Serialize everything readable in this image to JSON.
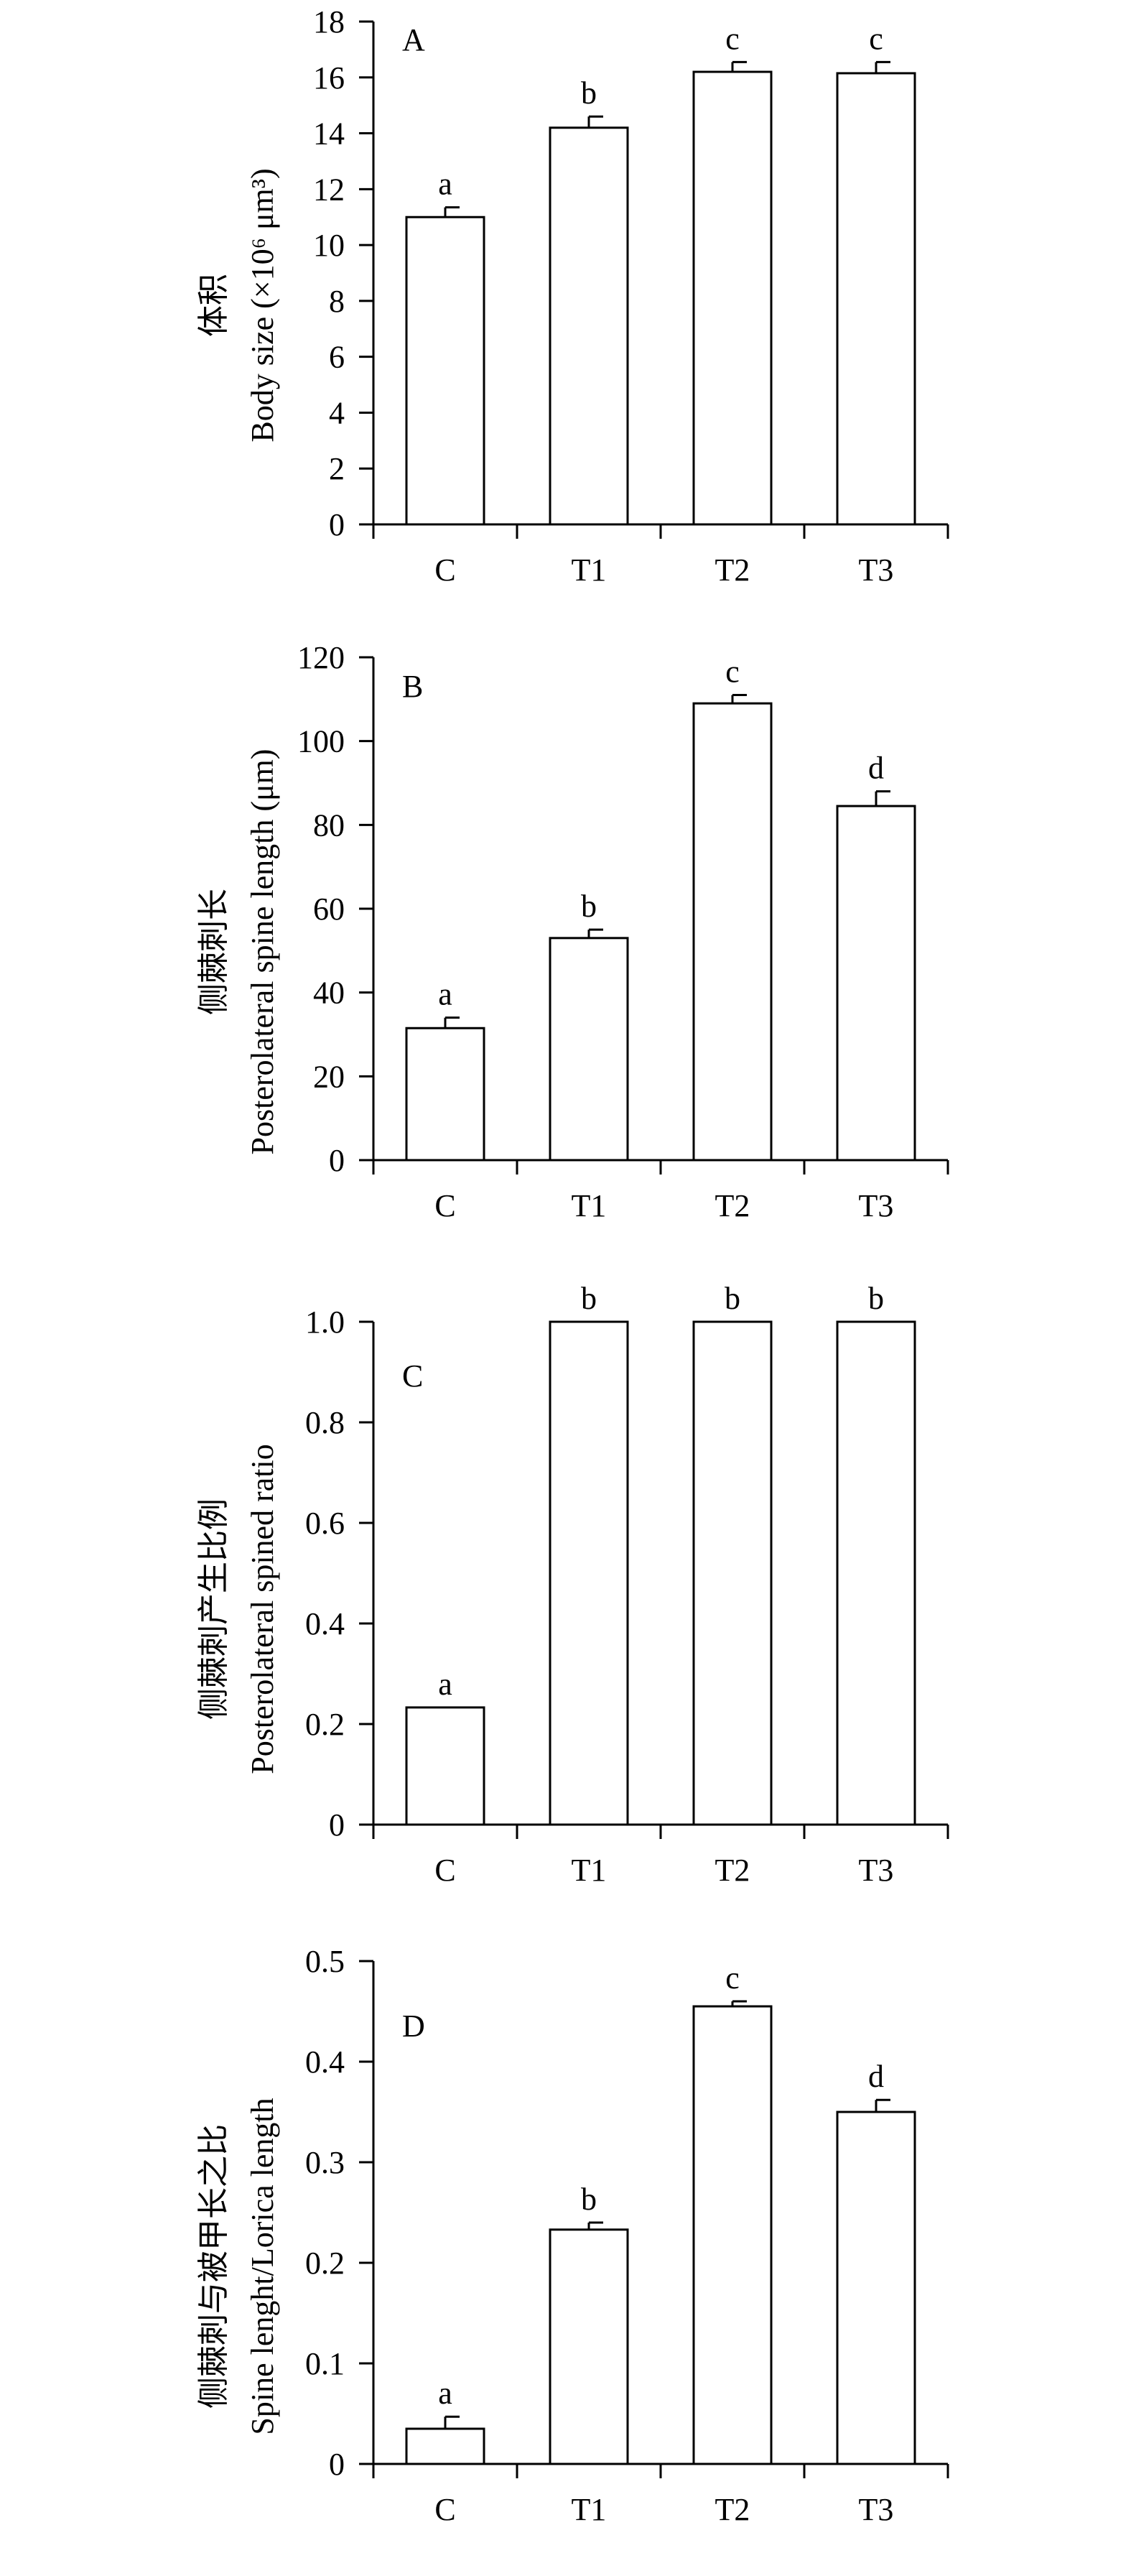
{
  "chart_data": [
    {
      "type": "bar",
      "panel_label": "A",
      "ylabel_cn": "体积",
      "ylabel_en": "Body size (×10⁶ μm³)",
      "categories": [
        "C",
        "T1",
        "T2",
        "T3"
      ],
      "values": [
        11.0,
        14.2,
        16.2,
        16.15
      ],
      "errors": [
        0.35,
        0.4,
        0.35,
        0.4
      ],
      "letters": [
        "a",
        "b",
        "c",
        "c"
      ],
      "ylim": [
        0,
        18
      ],
      "yticks": [
        "0",
        "2",
        "4",
        "6",
        "8",
        "10",
        "12",
        "14",
        "16",
        "18"
      ],
      "ytick_values": [
        0,
        2,
        4,
        6,
        8,
        10,
        12,
        14,
        16,
        18
      ],
      "grid": false
    },
    {
      "type": "bar",
      "panel_label": "B",
      "ylabel_cn": "侧棘刺长",
      "ylabel_en": "Posterolateral spine length (μm)",
      "categories": [
        "C",
        "T1",
        "T2",
        "T3"
      ],
      "values": [
        31.5,
        53.0,
        109.0,
        84.5
      ],
      "errors": [
        2.5,
        2.0,
        2.0,
        3.5
      ],
      "letters": [
        "a",
        "b",
        "c",
        "d"
      ],
      "ylim": [
        0,
        120
      ],
      "yticks": [
        "0",
        "20",
        "40",
        "60",
        "80",
        "100",
        "120"
      ],
      "ytick_values": [
        0,
        20,
        40,
        60,
        80,
        100,
        120
      ],
      "grid": false
    },
    {
      "type": "bar",
      "panel_label": "C",
      "ylabel_cn": "侧棘刺产生比例",
      "ylabel_en": "Posterolateral spined ratio",
      "categories": [
        "C",
        "T1",
        "T2",
        "T3"
      ],
      "values": [
        0.233,
        1.0,
        1.0,
        1.0
      ],
      "errors": [
        0,
        0,
        0,
        0
      ],
      "letters": [
        "a",
        "b",
        "b",
        "b"
      ],
      "ylim": [
        0,
        1.0
      ],
      "yticks": [
        "0",
        "0.2",
        "0.4",
        "0.6",
        "0.8",
        "1.0"
      ],
      "ytick_values": [
        0,
        0.2,
        0.4,
        0.6,
        0.8,
        1.0
      ],
      "grid": false
    },
    {
      "type": "bar",
      "panel_label": "D",
      "ylabel_cn": "侧棘刺与被甲长之比",
      "ylabel_en": "Spine lenght/Lorica length",
      "categories": [
        "C",
        "T1",
        "T2",
        "T3"
      ],
      "values": [
        0.035,
        0.233,
        0.455,
        0.35
      ],
      "errors": [
        0.012,
        0.007,
        0.005,
        0.012
      ],
      "letters": [
        "a",
        "b",
        "c",
        "d"
      ],
      "ylim": [
        0,
        0.5
      ],
      "yticks": [
        "0",
        "0.1",
        "0.2",
        "0.3",
        "0.4",
        "0.5"
      ],
      "ytick_values": [
        0,
        0.1,
        0.2,
        0.3,
        0.4,
        0.5
      ],
      "grid": false
    }
  ]
}
